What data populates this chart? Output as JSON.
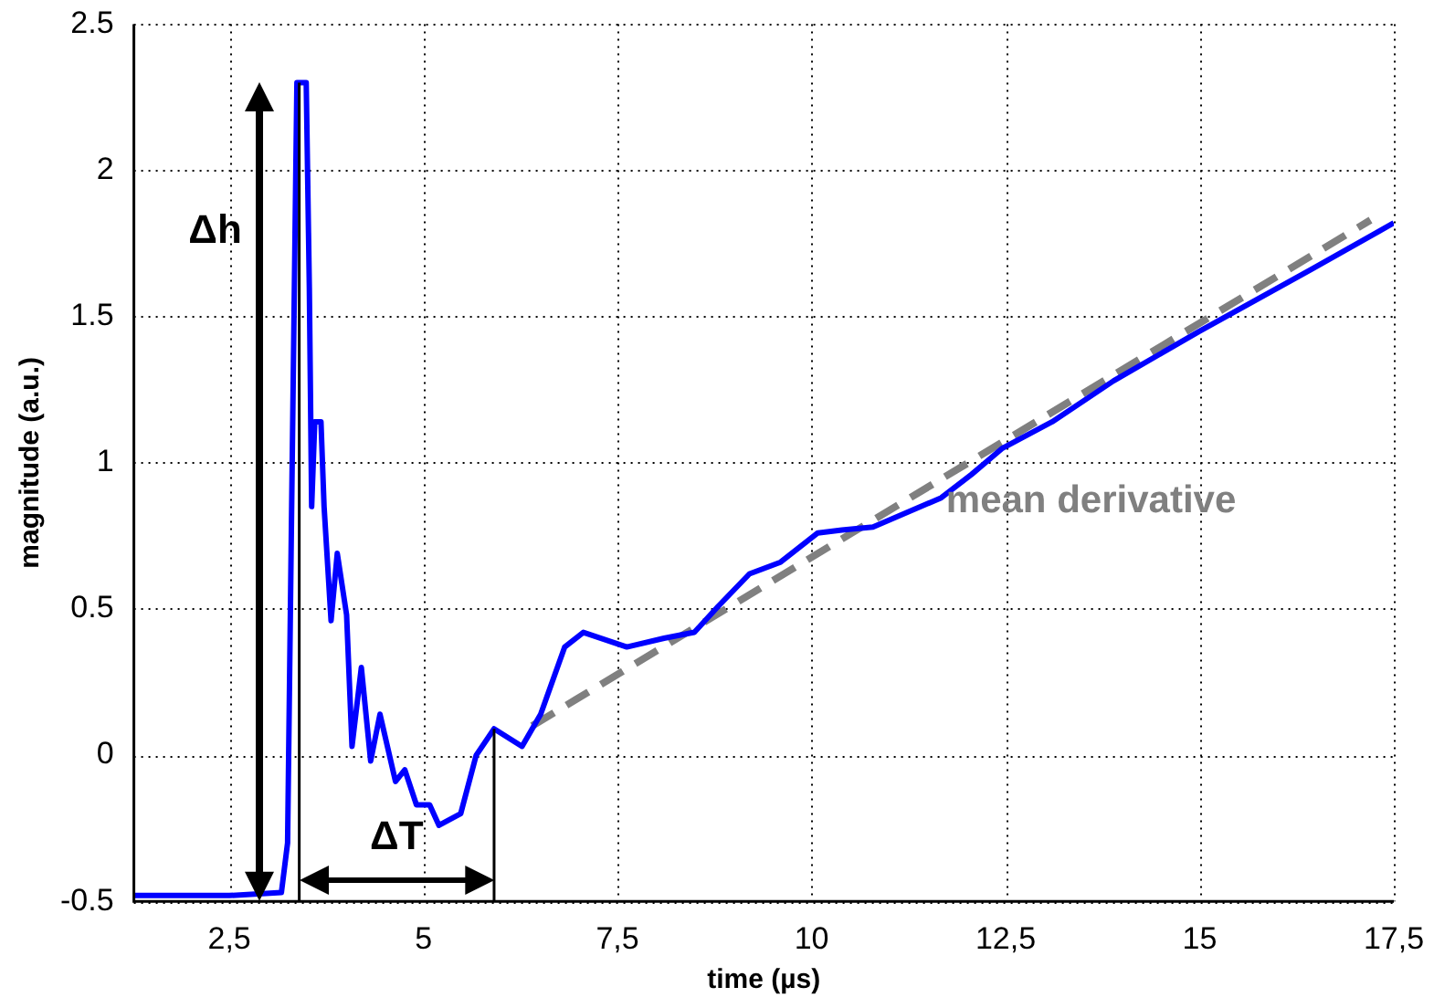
{
  "chart_data": {
    "type": "line",
    "xlabel": "time (µs)",
    "ylabel": "magnitude (a.u.)",
    "xlim": [
      1.27,
      17.5
    ],
    "ylim": [
      -0.5,
      2.5
    ],
    "xticks": [
      {
        "value": 2.5,
        "label": "2,5"
      },
      5,
      {
        "value": 7.5,
        "label": "7,5"
      },
      10,
      {
        "value": 12.5,
        "label": "12,5"
      },
      15,
      {
        "value": 17.5,
        "label": "17,5"
      }
    ],
    "yticks": [
      -0.5,
      0,
      0.5,
      1,
      1.5,
      2,
      2.5
    ],
    "grid": true,
    "legend": false,
    "marker": "none",
    "series": [
      {
        "color": "#0000ff",
        "line_style": "solid",
        "x": [
          1.27,
          2.5,
          3.17,
          3.25,
          3.3,
          3.37,
          3.49,
          3.53,
          3.56,
          3.6,
          3.68,
          3.72,
          3.81,
          3.89,
          4.01,
          4.08,
          4.2,
          4.32,
          4.44,
          4.64,
          4.76,
          4.91,
          5.08,
          5.2,
          5.48,
          5.68,
          5.91,
          6.27,
          6.51,
          6.82,
          7.06,
          7.62,
          8.1,
          8.49,
          8.8,
          9.2,
          9.6,
          10.08,
          10.39,
          10.79,
          11.67,
          12.06,
          12.46,
          13.1,
          13.89,
          15.0,
          16.43,
          17.5
        ],
        "values": [
          -0.48,
          -0.48,
          -0.47,
          -0.3,
          0.8,
          2.3,
          2.3,
          1.6,
          0.85,
          1.14,
          1.14,
          0.85,
          0.46,
          0.69,
          0.48,
          0.03,
          0.3,
          -0.02,
          0.14,
          -0.09,
          -0.05,
          -0.17,
          -0.17,
          -0.24,
          -0.2,
          0.0,
          0.09,
          0.03,
          0.14,
          0.37,
          0.42,
          0.37,
          0.4,
          0.42,
          0.51,
          0.62,
          0.66,
          0.76,
          0.77,
          0.78,
          0.88,
          0.96,
          1.05,
          1.14,
          1.28,
          1.45,
          1.66,
          1.82
        ]
      },
      {
        "name": "mean derivative",
        "color": "#808080",
        "line_style": "dashed",
        "x": [
          6.4,
          17.2
        ],
        "values": [
          0.1,
          1.83
        ]
      }
    ],
    "ref_lines": [
      {
        "axis": "x",
        "value": 3.4
      },
      {
        "axis": "x",
        "value": 5.91
      }
    ],
    "annotations": [
      "Δh",
      "ΔT"
    ]
  }
}
